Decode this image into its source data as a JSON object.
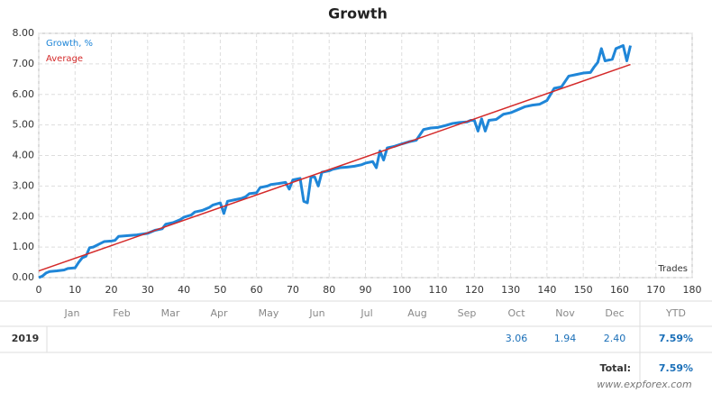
{
  "chart_data": {
    "type": "line",
    "title": "Growth",
    "x_label": "Trades",
    "grid": true,
    "legend": "upper left",
    "xlim": [
      0,
      180
    ],
    "xticks": [
      0,
      10,
      20,
      30,
      40,
      50,
      60,
      70,
      80,
      90,
      100,
      110,
      120,
      130,
      140,
      150,
      160,
      170,
      180
    ],
    "ylim": [
      0,
      8
    ],
    "yticks": [
      {
        "value": 0,
        "label": "0.00"
      },
      {
        "value": 1,
        "label": "1.00"
      },
      {
        "value": 2,
        "label": "2.00"
      },
      {
        "value": 3,
        "label": "3.00"
      },
      {
        "value": 4,
        "label": "4.00"
      },
      {
        "value": 5,
        "label": "5.00"
      },
      {
        "value": 6,
        "label": "6.00"
      },
      {
        "value": 7,
        "label": "7.00"
      },
      {
        "value": 8,
        "label": "8.00"
      }
    ],
    "series": [
      {
        "name": "Growth, %",
        "color": "#1f86d8",
        "width": 3,
        "x": [
          0,
          1,
          2,
          3,
          5,
          7,
          8,
          10,
          11,
          12,
          13,
          14,
          15,
          17,
          18,
          20,
          21,
          22,
          25,
          27,
          30,
          32,
          34,
          35,
          37,
          39,
          40,
          42,
          43,
          45,
          47,
          48,
          50,
          51,
          52,
          54,
          56,
          57,
          58,
          60,
          61,
          63,
          64,
          66,
          68,
          69,
          70,
          72,
          73,
          74,
          75,
          76,
          77,
          78,
          80,
          81,
          83,
          85,
          87,
          89,
          90,
          92,
          93,
          94,
          95,
          96,
          98,
          100,
          102,
          104,
          106,
          108,
          110,
          112,
          114,
          116,
          118,
          119,
          120,
          121,
          122,
          123,
          124,
          126,
          128,
          130,
          132,
          134,
          136,
          138,
          140,
          141,
          142,
          144,
          146,
          148,
          150,
          152,
          153,
          154,
          155,
          156,
          158,
          159,
          161,
          162,
          163
        ],
        "values": [
          0,
          0.05,
          0.15,
          0.2,
          0.22,
          0.25,
          0.3,
          0.32,
          0.5,
          0.65,
          0.7,
          0.98,
          1.0,
          1.12,
          1.18,
          1.2,
          1.22,
          1.35,
          1.38,
          1.4,
          1.45,
          1.55,
          1.6,
          1.75,
          1.8,
          1.9,
          1.98,
          2.05,
          2.15,
          2.2,
          2.3,
          2.38,
          2.45,
          2.1,
          2.5,
          2.55,
          2.6,
          2.65,
          2.75,
          2.78,
          2.95,
          3.0,
          3.05,
          3.08,
          3.12,
          2.9,
          3.2,
          3.25,
          2.5,
          2.45,
          3.3,
          3.3,
          3.0,
          3.45,
          3.5,
          3.55,
          3.6,
          3.62,
          3.65,
          3.7,
          3.75,
          3.8,
          3.6,
          4.15,
          3.85,
          4.25,
          4.3,
          4.38,
          4.45,
          4.5,
          4.85,
          4.9,
          4.92,
          4.98,
          5.05,
          5.08,
          5.1,
          5.15,
          5.15,
          4.8,
          5.2,
          4.8,
          5.15,
          5.18,
          5.35,
          5.4,
          5.5,
          5.6,
          5.65,
          5.68,
          5.8,
          6.0,
          6.2,
          6.25,
          6.6,
          6.65,
          6.7,
          6.72,
          6.9,
          7.05,
          7.5,
          7.1,
          7.15,
          7.5,
          7.6,
          7.1,
          7.6
        ]
      },
      {
        "name": "Average",
        "color": "#d42a2a",
        "width": 1.5,
        "x": [
          0,
          163
        ],
        "values": [
          0.22,
          6.98
        ]
      }
    ]
  },
  "table": {
    "columns": [
      "Jan",
      "Feb",
      "Mar",
      "Apr",
      "May",
      "Jun",
      "Jul",
      "Aug",
      "Sep",
      "Oct",
      "Nov",
      "Dec",
      "YTD"
    ],
    "rows": [
      {
        "label": "2019",
        "cells": [
          null,
          null,
          null,
          null,
          null,
          null,
          null,
          null,
          null,
          "3.06",
          "1.94",
          "2.40",
          "7.59%"
        ]
      }
    ],
    "total": {
      "label": "Total:",
      "value": "7.59%"
    }
  },
  "watermark": "www.expforex.com"
}
